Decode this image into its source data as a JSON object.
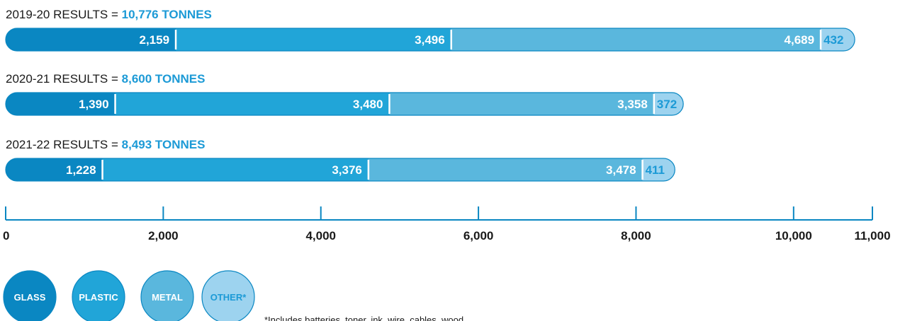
{
  "chart_data": {
    "type": "bar",
    "orientation": "horizontal",
    "stacked": true,
    "unit": "TONNES",
    "categories": [
      "2019-20",
      "2020-21",
      "2021-22"
    ],
    "row_titles": [
      "2019-20 RESULTS = ",
      "2020-21 RESULTS = ",
      "2021-22 RESULTS = "
    ],
    "row_totals": [
      "10,776 TONNES",
      "8,600 TONNES",
      "8,493 TONNES"
    ],
    "series": [
      {
        "name": "GLASS",
        "color": "#0a87c2",
        "values": [
          2159,
          1390,
          1228
        ],
        "labels": [
          "2,159",
          "1,390",
          "1,228"
        ]
      },
      {
        "name": "PLASTIC",
        "color": "#21a5d8",
        "values": [
          3496,
          3480,
          3376
        ],
        "labels": [
          "3,496",
          "3,480",
          "3,376"
        ]
      },
      {
        "name": "METAL",
        "color": "#5ab7dd",
        "values": [
          4689,
          3358,
          3478
        ],
        "labels": [
          "4,689",
          "3,358",
          "3,478"
        ]
      },
      {
        "name": "OTHER*",
        "color": "#9dd3ef",
        "values": [
          432,
          372,
          411
        ],
        "labels": [
          "432",
          "372",
          "411"
        ]
      }
    ],
    "xlim": [
      0,
      11000
    ],
    "x_ticks": [
      0,
      2000,
      4000,
      6000,
      8000,
      10000,
      11000
    ],
    "x_tick_labels": [
      "0",
      "2,000",
      "4,000",
      "6,000",
      "8,000",
      "10,000",
      "11,000"
    ],
    "legend_position": "bottom-left",
    "footnote": "*Includes batteries, toner, ink, wire, cables, wood"
  }
}
